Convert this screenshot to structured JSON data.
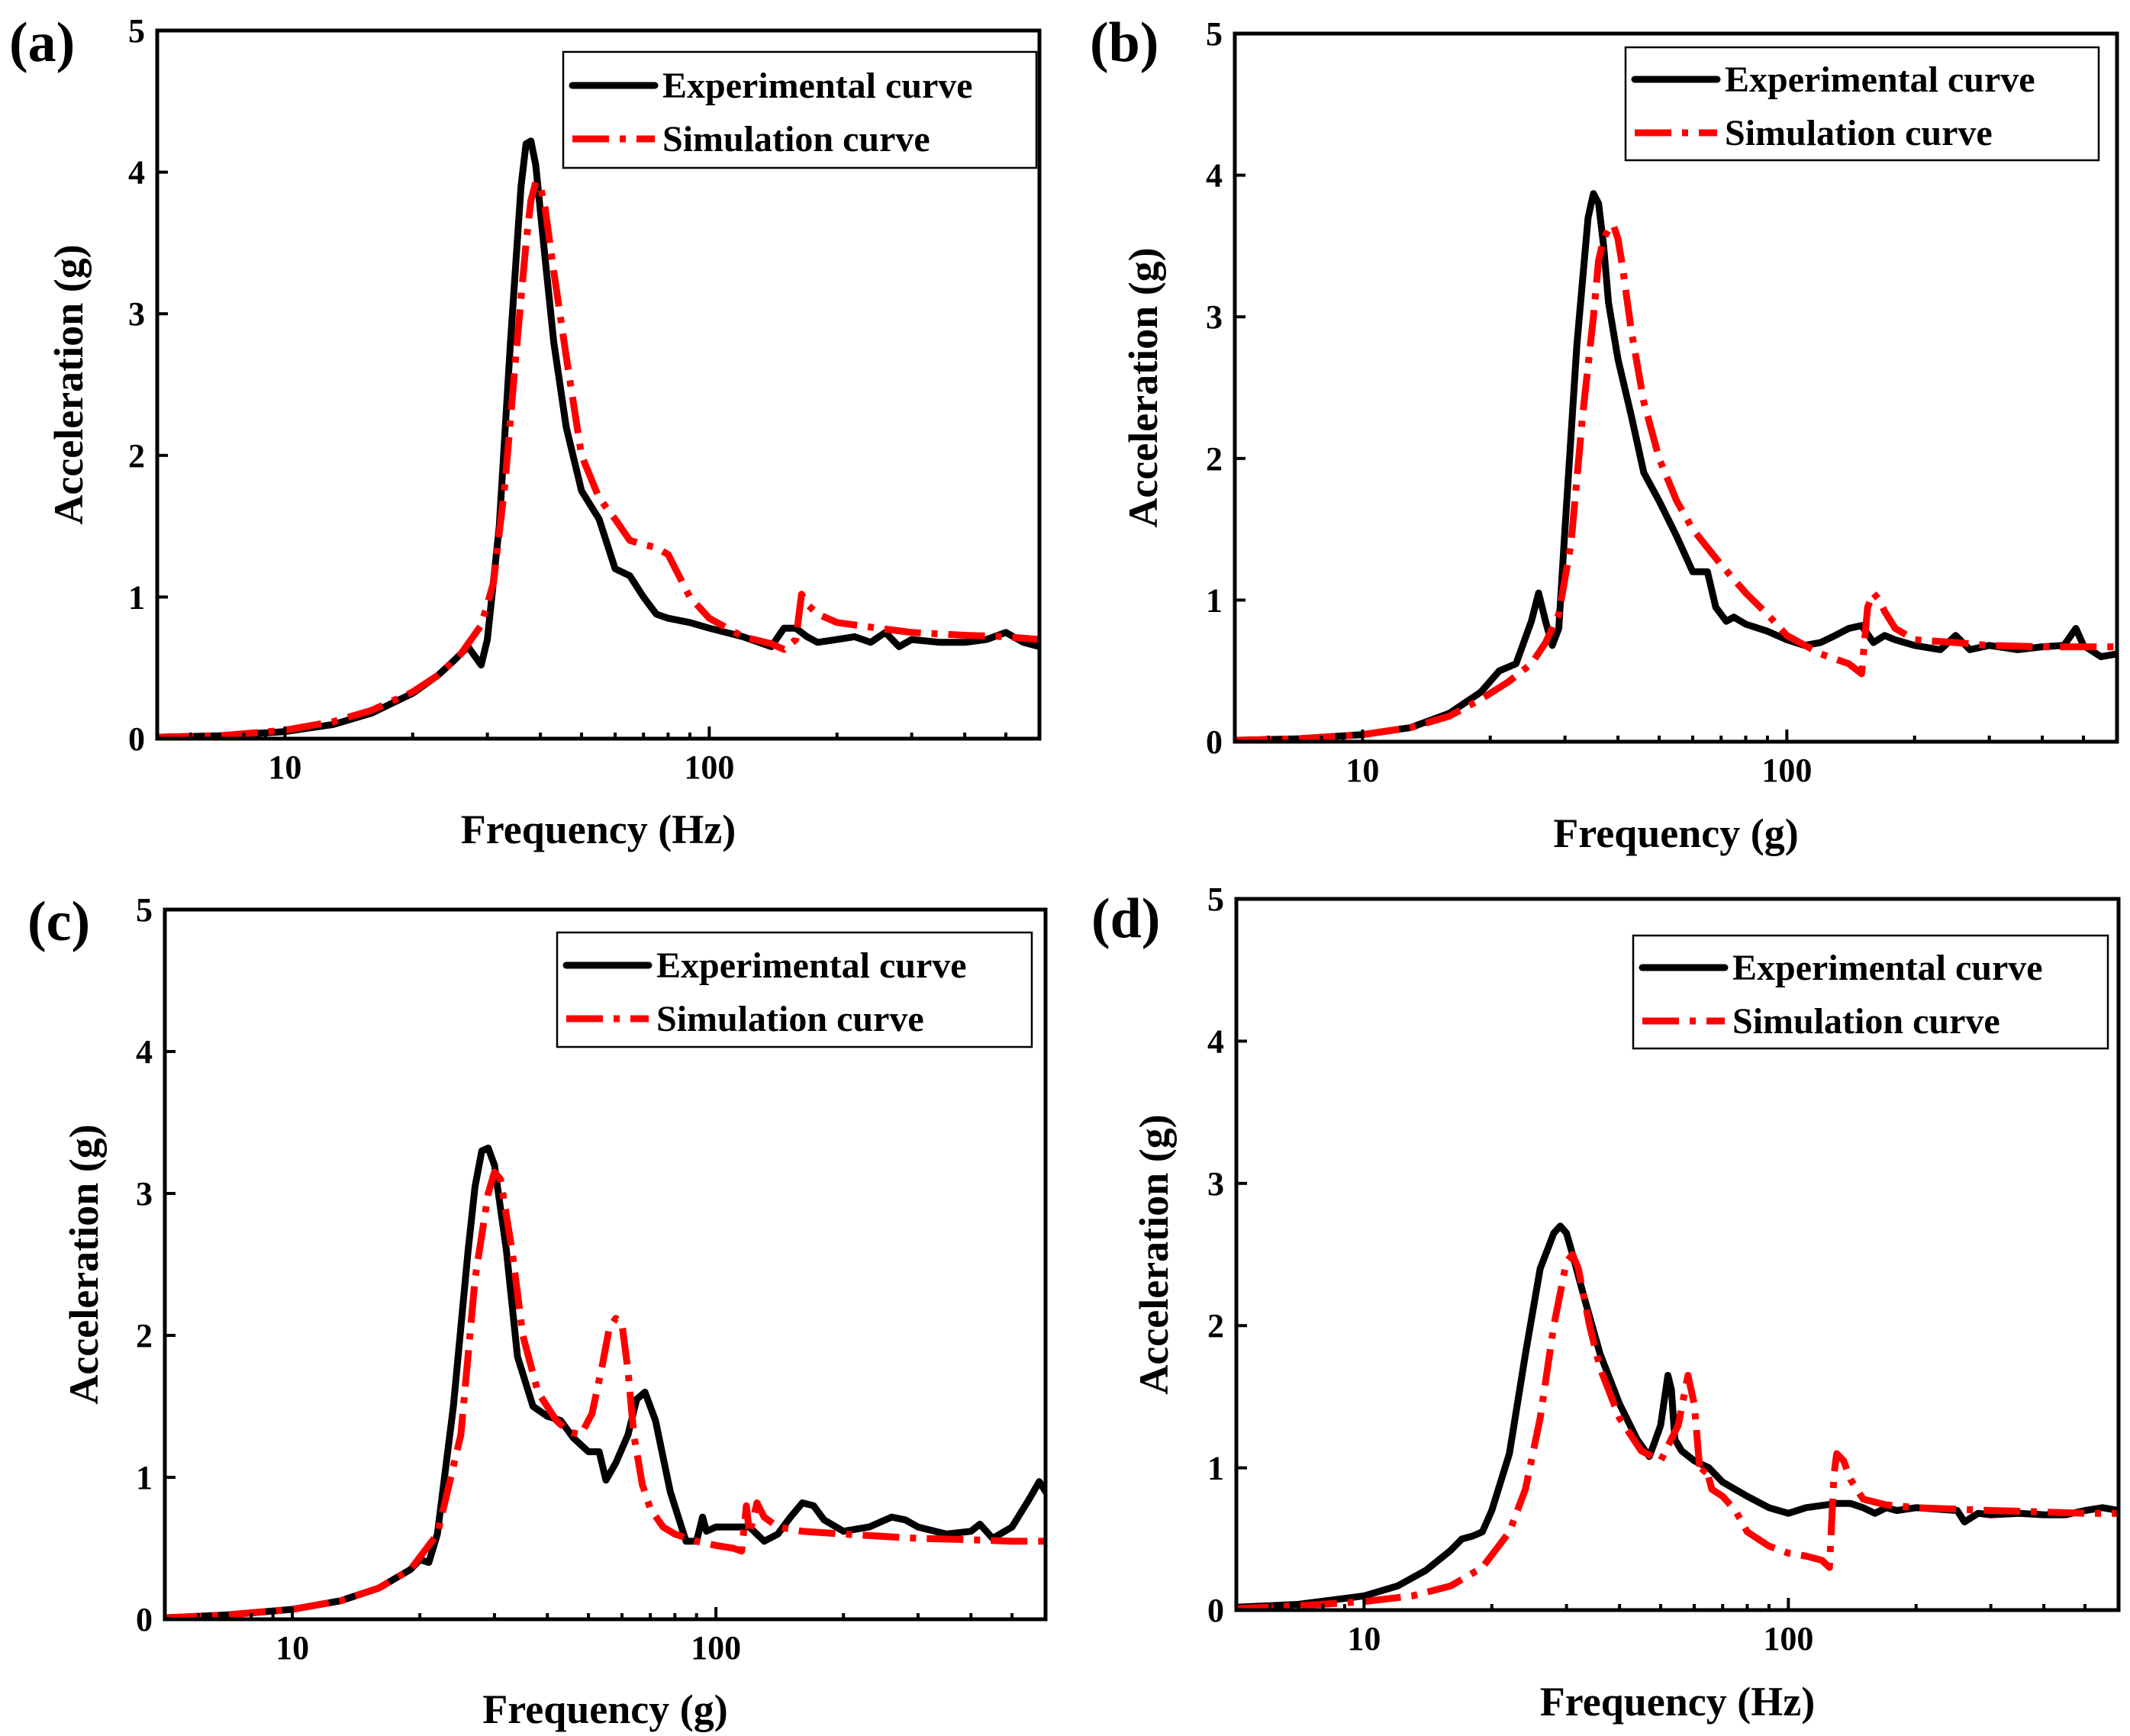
{
  "figure": {
    "background": "#ffffff"
  },
  "legend_colors": {
    "experimental": "#000000",
    "simulation": "#ff0000"
  },
  "chart_data": [
    {
      "panel": "(a)",
      "type": "line",
      "xscale": "log",
      "xlabel": "Frequency (Hz)",
      "ylabel": "Acceleration (g)",
      "xlim": [
        5,
        600
      ],
      "ylim": [
        0,
        5
      ],
      "xticks": [
        10,
        100
      ],
      "yticks": [
        0,
        1,
        2,
        3,
        4,
        5
      ],
      "legend_position": "top-right",
      "series": [
        {
          "name": "Experimental curve",
          "style": "solid",
          "color": "#000000",
          "x": [
            5,
            7,
            10,
            13,
            16,
            20,
            23,
            25,
            27,
            29,
            30,
            32,
            34,
            36,
            37,
            38,
            39,
            41,
            43,
            46,
            50,
            55,
            60,
            65,
            70,
            75,
            80,
            90,
            100,
            120,
            140,
            150,
            160,
            170,
            180,
            200,
            220,
            240,
            260,
            280,
            300,
            350,
            400,
            450,
            500,
            550,
            600
          ],
          "y": [
            0.01,
            0.02,
            0.05,
            0.1,
            0.18,
            0.32,
            0.45,
            0.55,
            0.65,
            0.52,
            0.7,
            1.5,
            2.8,
            3.9,
            4.2,
            4.22,
            4.05,
            3.4,
            2.8,
            2.2,
            1.75,
            1.55,
            1.2,
            1.15,
            1.0,
            0.88,
            0.85,
            0.82,
            0.78,
            0.72,
            0.65,
            0.78,
            0.78,
            0.72,
            0.68,
            0.7,
            0.72,
            0.68,
            0.75,
            0.65,
            0.7,
            0.68,
            0.68,
            0.7,
            0.75,
            0.68,
            0.65
          ]
        },
        {
          "name": "Simulation curve",
          "style": "dash-dot",
          "color": "#ff0000",
          "x": [
            5,
            7,
            10,
            13,
            16,
            20,
            23,
            26,
            29,
            31,
            33,
            35,
            37,
            38,
            39,
            40,
            41,
            43,
            46,
            50,
            55,
            60,
            65,
            70,
            75,
            80,
            90,
            100,
            120,
            140,
            150,
            160,
            165,
            170,
            180,
            200,
            250,
            300,
            400,
            500,
            600
          ],
          "y": [
            0.01,
            0.02,
            0.06,
            0.12,
            0.2,
            0.33,
            0.45,
            0.6,
            0.8,
            1.1,
            1.8,
            2.7,
            3.5,
            3.8,
            3.93,
            3.9,
            3.75,
            3.3,
            2.7,
            2.0,
            1.7,
            1.55,
            1.4,
            1.37,
            1.35,
            1.3,
            1.0,
            0.85,
            0.72,
            0.67,
            0.63,
            0.7,
            1.02,
            0.95,
            0.88,
            0.82,
            0.78,
            0.75,
            0.73,
            0.72,
            0.7
          ]
        }
      ]
    },
    {
      "panel": "(b)",
      "type": "line",
      "xscale": "log",
      "xlabel": "Frequency (g)",
      "ylabel": "Acceleration (g)",
      "xlim": [
        5,
        600
      ],
      "ylim": [
        0,
        5
      ],
      "xticks": [
        10,
        100
      ],
      "yticks": [
        0,
        1,
        2,
        3,
        4,
        5
      ],
      "legend_position": "top-right",
      "series": [
        {
          "name": "Experimental curve",
          "style": "solid",
          "color": "#000000",
          "x": [
            5,
            7,
            10,
            13,
            16,
            19,
            21,
            23,
            25,
            26,
            27,
            28,
            29,
            30,
            32,
            34,
            35,
            36,
            37,
            38,
            40,
            43,
            46,
            50,
            55,
            60,
            65,
            68,
            72,
            75,
            80,
            90,
            100,
            110,
            120,
            130,
            140,
            150,
            160,
            170,
            180,
            200,
            230,
            250,
            270,
            300,
            350,
            400,
            450,
            480,
            500,
            550,
            600
          ],
          "y": [
            0.01,
            0.02,
            0.05,
            0.1,
            0.2,
            0.35,
            0.5,
            0.55,
            0.85,
            1.05,
            0.85,
            0.68,
            0.8,
            1.5,
            2.8,
            3.7,
            3.87,
            3.8,
            3.5,
            3.1,
            2.7,
            2.3,
            1.9,
            1.7,
            1.45,
            1.2,
            1.2,
            0.95,
            0.85,
            0.88,
            0.83,
            0.78,
            0.72,
            0.68,
            0.7,
            0.75,
            0.8,
            0.82,
            0.7,
            0.75,
            0.72,
            0.68,
            0.65,
            0.75,
            0.65,
            0.68,
            0.65,
            0.67,
            0.68,
            0.8,
            0.68,
            0.6,
            0.62
          ]
        },
        {
          "name": "Simulation curve",
          "style": "dash-dot",
          "color": "#ff0000",
          "x": [
            5,
            7,
            10,
            13,
            16,
            19,
            22,
            25,
            27,
            29,
            31,
            33,
            35,
            36,
            37,
            38,
            39,
            40,
            41,
            43,
            46,
            50,
            55,
            60,
            70,
            80,
            90,
            100,
            120,
            140,
            150,
            155,
            160,
            165,
            170,
            180,
            200,
            250,
            300,
            400,
            500,
            600
          ],
          "y": [
            0.01,
            0.02,
            0.05,
            0.1,
            0.18,
            0.3,
            0.42,
            0.55,
            0.7,
            0.9,
            1.4,
            2.3,
            3.0,
            3.4,
            3.55,
            3.62,
            3.65,
            3.55,
            3.35,
            2.9,
            2.4,
            2.0,
            1.7,
            1.5,
            1.25,
            1.05,
            0.9,
            0.75,
            0.62,
            0.55,
            0.48,
            0.95,
            1.05,
            1.0,
            0.92,
            0.8,
            0.72,
            0.7,
            0.68,
            0.67,
            0.67,
            0.67
          ]
        }
      ]
    },
    {
      "panel": "(c)",
      "type": "line",
      "xscale": "log",
      "xlabel": "Frequency (g)",
      "ylabel": "Acceleration (g)",
      "xlim": [
        5,
        600
      ],
      "ylim": [
        0,
        5
      ],
      "xticks": [
        10,
        100
      ],
      "yticks": [
        0,
        1,
        2,
        3,
        4,
        5
      ],
      "legend_position": "top-right",
      "series": [
        {
          "name": "Experimental curve",
          "style": "solid",
          "color": "#000000",
          "x": [
            5,
            7,
            10,
            13,
            16,
            19,
            20,
            21,
            22,
            24,
            26,
            27,
            28,
            29,
            30,
            32,
            34,
            37,
            40,
            43,
            46,
            50,
            53,
            55,
            58,
            62,
            65,
            68,
            72,
            78,
            85,
            90,
            93,
            95,
            100,
            110,
            120,
            130,
            140,
            150,
            160,
            170,
            180,
            200,
            230,
            260,
            280,
            300,
            350,
            400,
            420,
            450,
            500,
            550,
            580,
            600
          ],
          "y": [
            0.01,
            0.03,
            0.07,
            0.13,
            0.22,
            0.35,
            0.42,
            0.4,
            0.6,
            1.5,
            2.6,
            3.05,
            3.3,
            3.32,
            3.2,
            2.6,
            1.85,
            1.5,
            1.43,
            1.4,
            1.28,
            1.18,
            1.18,
            0.98,
            1.1,
            1.3,
            1.55,
            1.6,
            1.4,
            0.9,
            0.55,
            0.55,
            0.72,
            0.62,
            0.65,
            0.65,
            0.65,
            0.55,
            0.6,
            0.72,
            0.82,
            0.8,
            0.7,
            0.62,
            0.65,
            0.72,
            0.7,
            0.65,
            0.6,
            0.62,
            0.67,
            0.57,
            0.65,
            0.85,
            0.97,
            0.9
          ]
        },
        {
          "name": "Simulation curve",
          "style": "dash-dot",
          "color": "#ff0000",
          "x": [
            5,
            7,
            10,
            13,
            16,
            19,
            22,
            25,
            27,
            29,
            30,
            31,
            33,
            35,
            38,
            42,
            45,
            48,
            51,
            54,
            56,
            58,
            60,
            62,
            64,
            67,
            70,
            75,
            80,
            90,
            100,
            110,
            115,
            118,
            120,
            125,
            130,
            140,
            160,
            200,
            300,
            400,
            500,
            600
          ],
          "y": [
            0.01,
            0.03,
            0.07,
            0.13,
            0.22,
            0.35,
            0.6,
            1.3,
            2.4,
            3.0,
            3.15,
            3.1,
            2.6,
            2.0,
            1.6,
            1.4,
            1.32,
            1.3,
            1.45,
            1.8,
            2.05,
            2.12,
            2.08,
            1.75,
            1.3,
            0.95,
            0.78,
            0.65,
            0.6,
            0.55,
            0.52,
            0.5,
            0.48,
            0.8,
            0.6,
            0.82,
            0.72,
            0.65,
            0.62,
            0.6,
            0.57,
            0.56,
            0.55,
            0.55
          ]
        }
      ]
    },
    {
      "panel": "(d)",
      "type": "line",
      "xscale": "log",
      "xlabel": "Frequency (Hz)",
      "ylabel": "Acceleration (g)",
      "xlim": [
        5,
        600
      ],
      "ylim": [
        0,
        5
      ],
      "xticks": [
        10,
        100
      ],
      "yticks": [
        0,
        1,
        2,
        3,
        4,
        5
      ],
      "legend_position": "top-right",
      "series": [
        {
          "name": "Experimental curve",
          "style": "solid",
          "color": "#000000",
          "x": [
            5,
            7,
            10,
            12,
            14,
            16,
            17,
            18,
            19,
            20,
            22,
            24,
            26,
            28,
            29,
            30,
            31,
            33,
            36,
            40,
            44,
            47,
            48,
            50,
            52,
            53,
            54,
            56,
            60,
            65,
            70,
            80,
            90,
            100,
            110,
            130,
            140,
            150,
            160,
            170,
            180,
            200,
            250,
            260,
            280,
            300,
            350,
            400,
            450,
            500,
            550,
            600
          ],
          "y": [
            0.02,
            0.04,
            0.1,
            0.17,
            0.28,
            0.42,
            0.5,
            0.52,
            0.55,
            0.7,
            1.1,
            1.8,
            2.4,
            2.65,
            2.7,
            2.65,
            2.5,
            2.2,
            1.8,
            1.45,
            1.2,
            1.08,
            1.15,
            1.3,
            1.65,
            1.55,
            1.2,
            1.12,
            1.05,
            1.0,
            0.9,
            0.8,
            0.72,
            0.68,
            0.72,
            0.75,
            0.75,
            0.72,
            0.68,
            0.72,
            0.7,
            0.72,
            0.7,
            0.62,
            0.68,
            0.67,
            0.68,
            0.67,
            0.67,
            0.7,
            0.72,
            0.7
          ]
        },
        {
          "name": "Simulation curve",
          "style": "dash-dot",
          "color": "#ff0000",
          "x": [
            5,
            7,
            10,
            13,
            16,
            19,
            22,
            24,
            26,
            28,
            30,
            31,
            32,
            34,
            36,
            40,
            45,
            50,
            55,
            58,
            60,
            62,
            64,
            66,
            70,
            75,
            80,
            90,
            100,
            110,
            120,
            125,
            128,
            130,
            135,
            140,
            150,
            170,
            200,
            250,
            300,
            400,
            500,
            600
          ],
          "y": [
            0.01,
            0.03,
            0.06,
            0.1,
            0.17,
            0.3,
            0.55,
            0.85,
            1.35,
            2.0,
            2.45,
            2.5,
            2.4,
            2.0,
            1.7,
            1.35,
            1.12,
            1.05,
            1.3,
            1.65,
            1.45,
            0.95,
            1.0,
            0.85,
            0.8,
            0.7,
            0.55,
            0.45,
            0.4,
            0.38,
            0.35,
            0.3,
            0.95,
            1.1,
            1.05,
            0.92,
            0.78,
            0.74,
            0.72,
            0.71,
            0.7,
            0.69,
            0.68,
            0.68
          ]
        }
      ]
    }
  ]
}
